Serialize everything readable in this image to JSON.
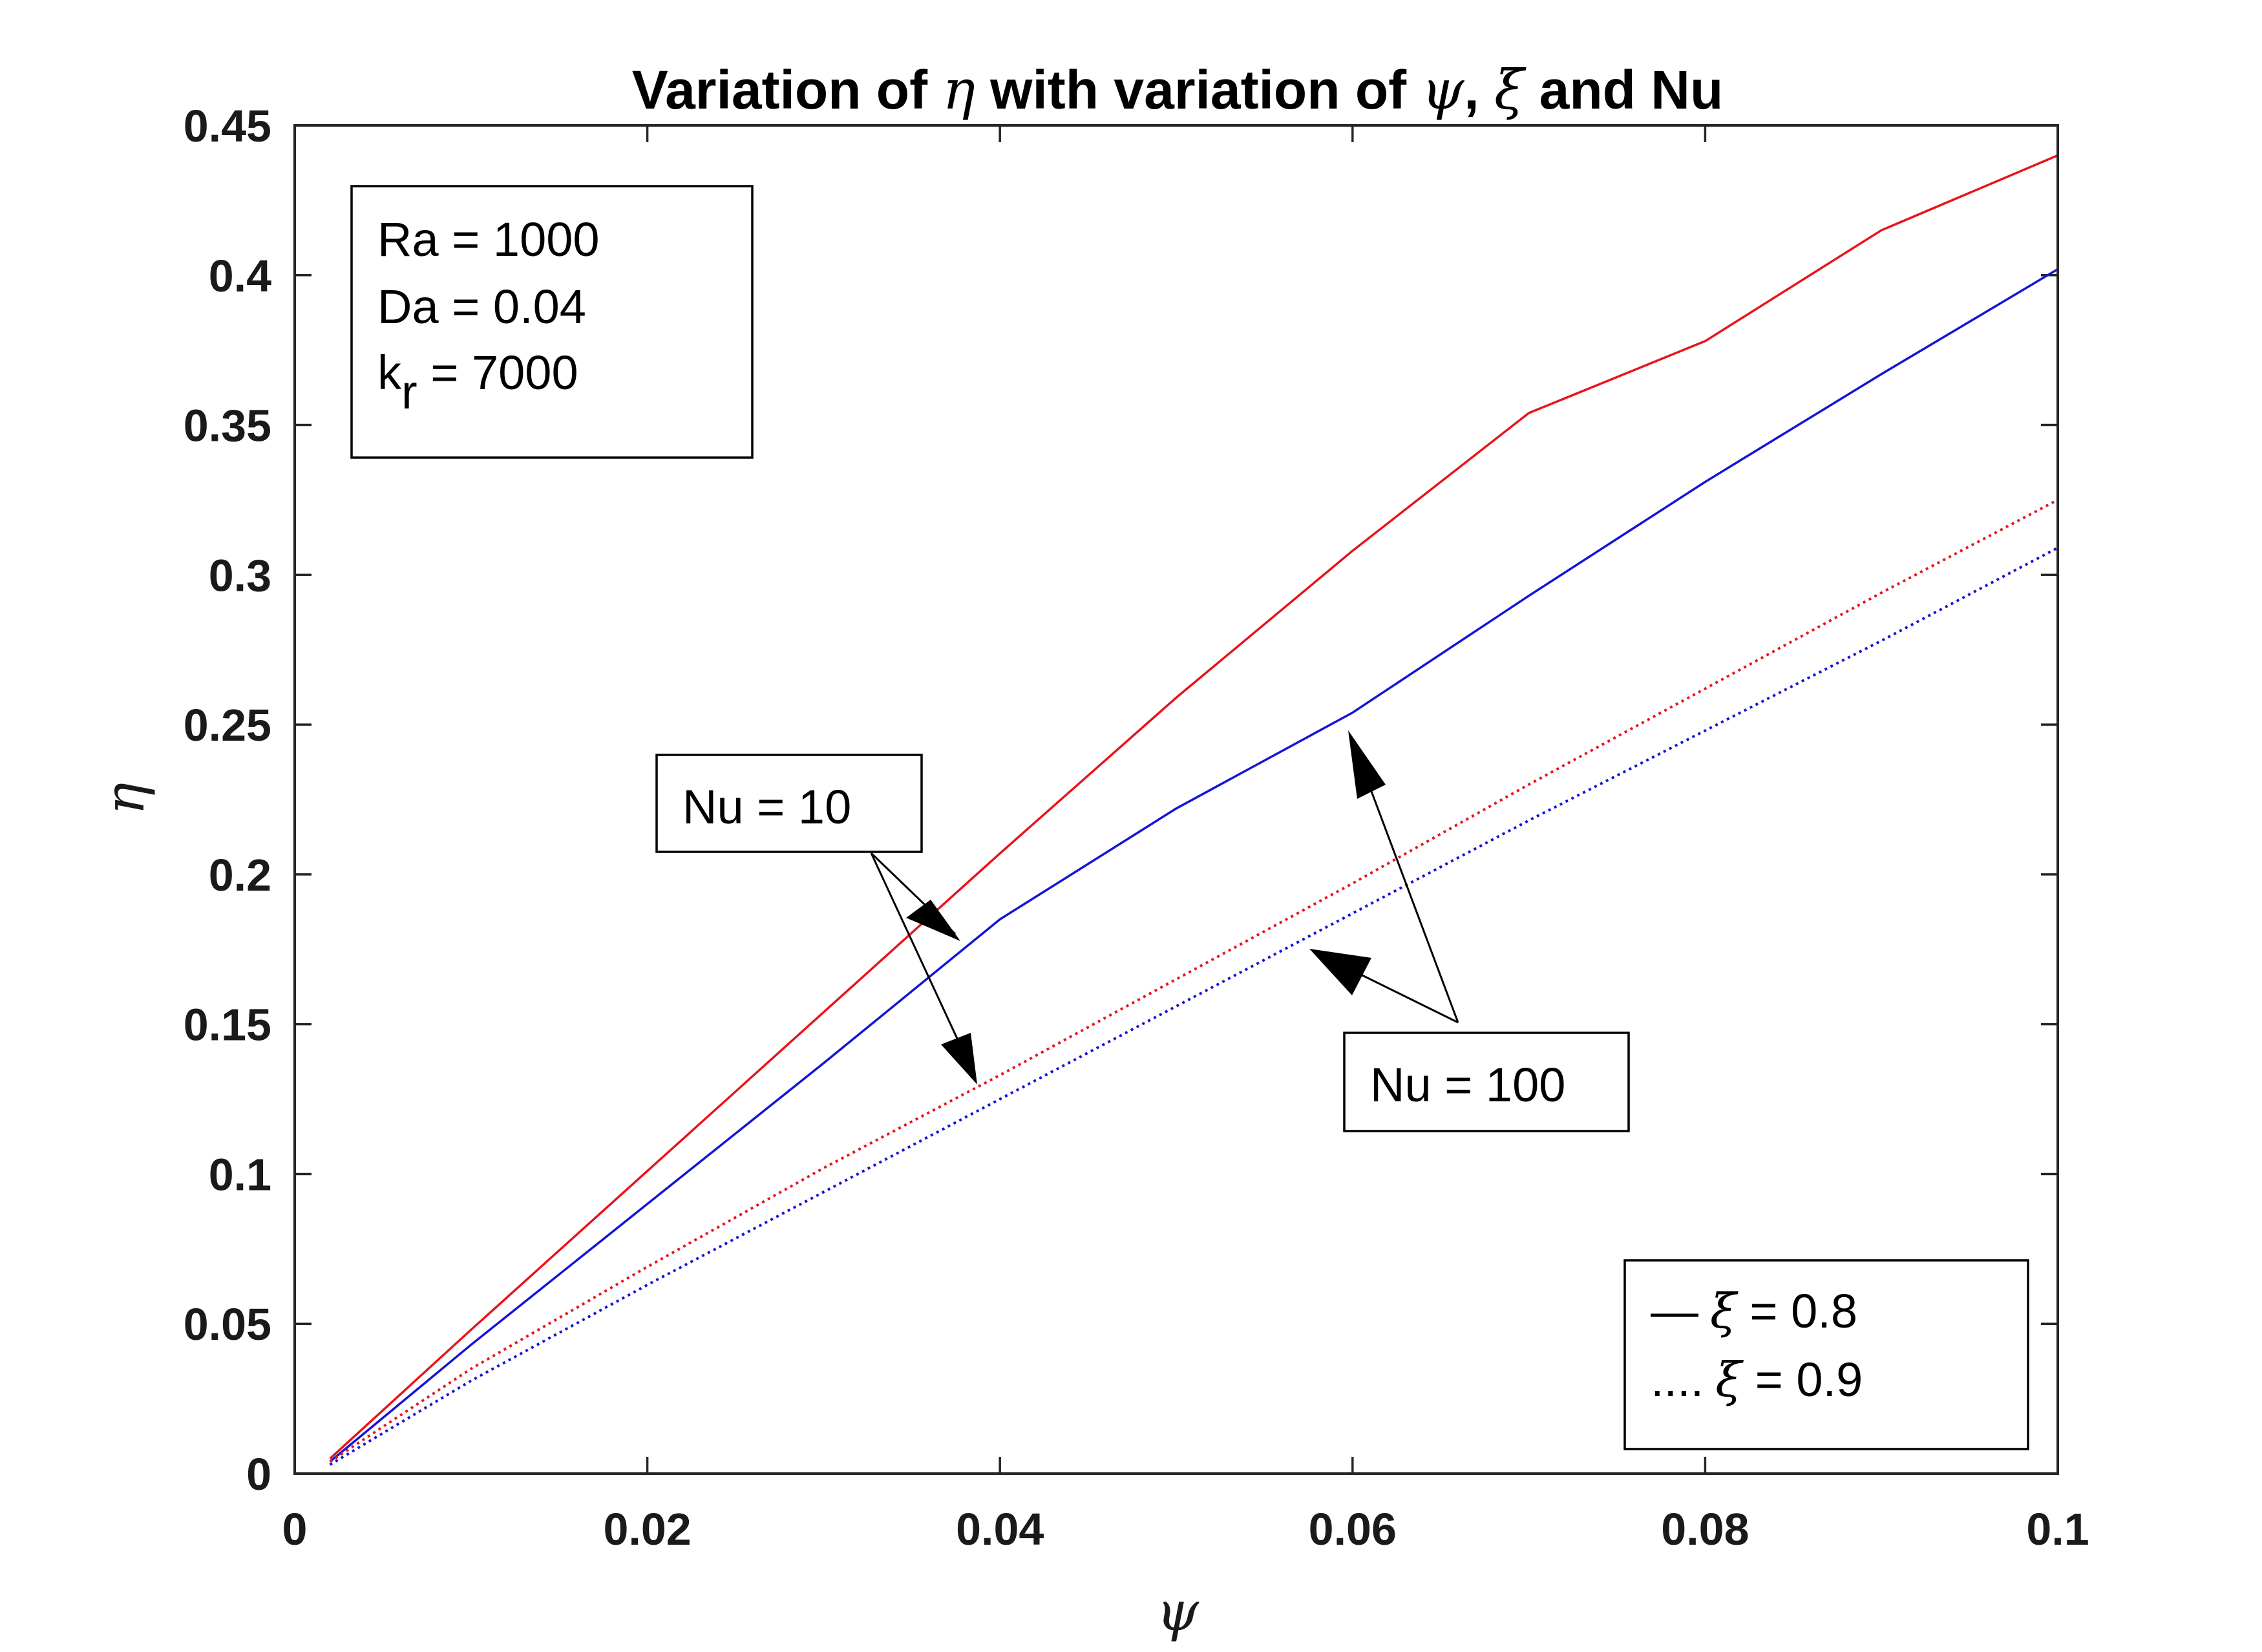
{
  "chart_data": {
    "type": "line",
    "title": {
      "prefix": "Variation of ",
      "sym1": "η",
      "mid1": " with variation of ",
      "sym2": "ψ",
      "mid2": ", ",
      "sym3": "ξ",
      "suffix": " and Nu"
    },
    "xlabel": "ψ",
    "ylabel": "η",
    "xlim": [
      0,
      0.1
    ],
    "ylim": [
      0,
      0.45
    ],
    "x_ticks": [
      0,
      0.02,
      0.04,
      0.06,
      0.08,
      0.1
    ],
    "x_tick_labels": [
      "0",
      "0.02",
      "0.04",
      "0.06",
      "0.08",
      "0.1"
    ],
    "y_ticks": [
      0,
      0.05,
      0.1,
      0.15,
      0.2,
      0.25,
      0.3,
      0.35,
      0.4,
      0.45
    ],
    "y_tick_labels": [
      "0",
      "0.05",
      "0.1",
      "0.15",
      "0.2",
      "0.25",
      "0.3",
      "0.35",
      "0.4",
      "0.45"
    ],
    "grid": false,
    "series": [
      {
        "color": "#e8141b",
        "style": "solid",
        "x": [
          0.002,
          0.01,
          0.02,
          0.03,
          0.04,
          0.05,
          0.06,
          0.07,
          0.08,
          0.09,
          0.1
        ],
        "y": [
          0.005,
          0.048,
          0.101,
          0.154,
          0.207,
          0.259,
          0.308,
          0.354,
          0.378,
          0.415,
          0.44
        ]
      },
      {
        "color": "#1414d6",
        "style": "solid",
        "x": [
          0.002,
          0.01,
          0.02,
          0.03,
          0.04,
          0.05,
          0.06,
          0.07,
          0.08,
          0.09,
          0.1
        ],
        "y": [
          0.004,
          0.043,
          0.09,
          0.137,
          0.185,
          0.222,
          0.254,
          0.293,
          0.331,
          0.367,
          0.402
        ]
      },
      {
        "color": "#e8141b",
        "style": "dotted",
        "x": [
          0.002,
          0.01,
          0.02,
          0.03,
          0.04,
          0.05,
          0.06,
          0.07,
          0.08,
          0.09,
          0.1
        ],
        "y": [
          0.004,
          0.035,
          0.069,
          0.102,
          0.133,
          0.165,
          0.197,
          0.23,
          0.262,
          0.294,
          0.325
        ]
      },
      {
        "color": "#1414d6",
        "style": "dotted",
        "x": [
          0.002,
          0.01,
          0.02,
          0.03,
          0.04,
          0.05,
          0.06,
          0.07,
          0.08,
          0.09,
          0.1
        ],
        "y": [
          0.003,
          0.031,
          0.063,
          0.094,
          0.125,
          0.156,
          0.187,
          0.218,
          0.248,
          0.278,
          0.309
        ]
      }
    ],
    "annotations": {
      "params": {
        "ra": "Ra = 1000",
        "da": "Da = 0.04",
        "kr_k": "k",
        "kr_sub": "r",
        "kr_val": " = 7000"
      },
      "nu10": "Nu = 10",
      "nu100": "Nu = 100",
      "legend": {
        "solid_mark": "—",
        "solid_sym": "ξ",
        "solid_val": " = 0.8",
        "dotted_mark": "....",
        "dotted_sym": "ξ",
        "dotted_val": " = 0.9"
      }
    }
  }
}
